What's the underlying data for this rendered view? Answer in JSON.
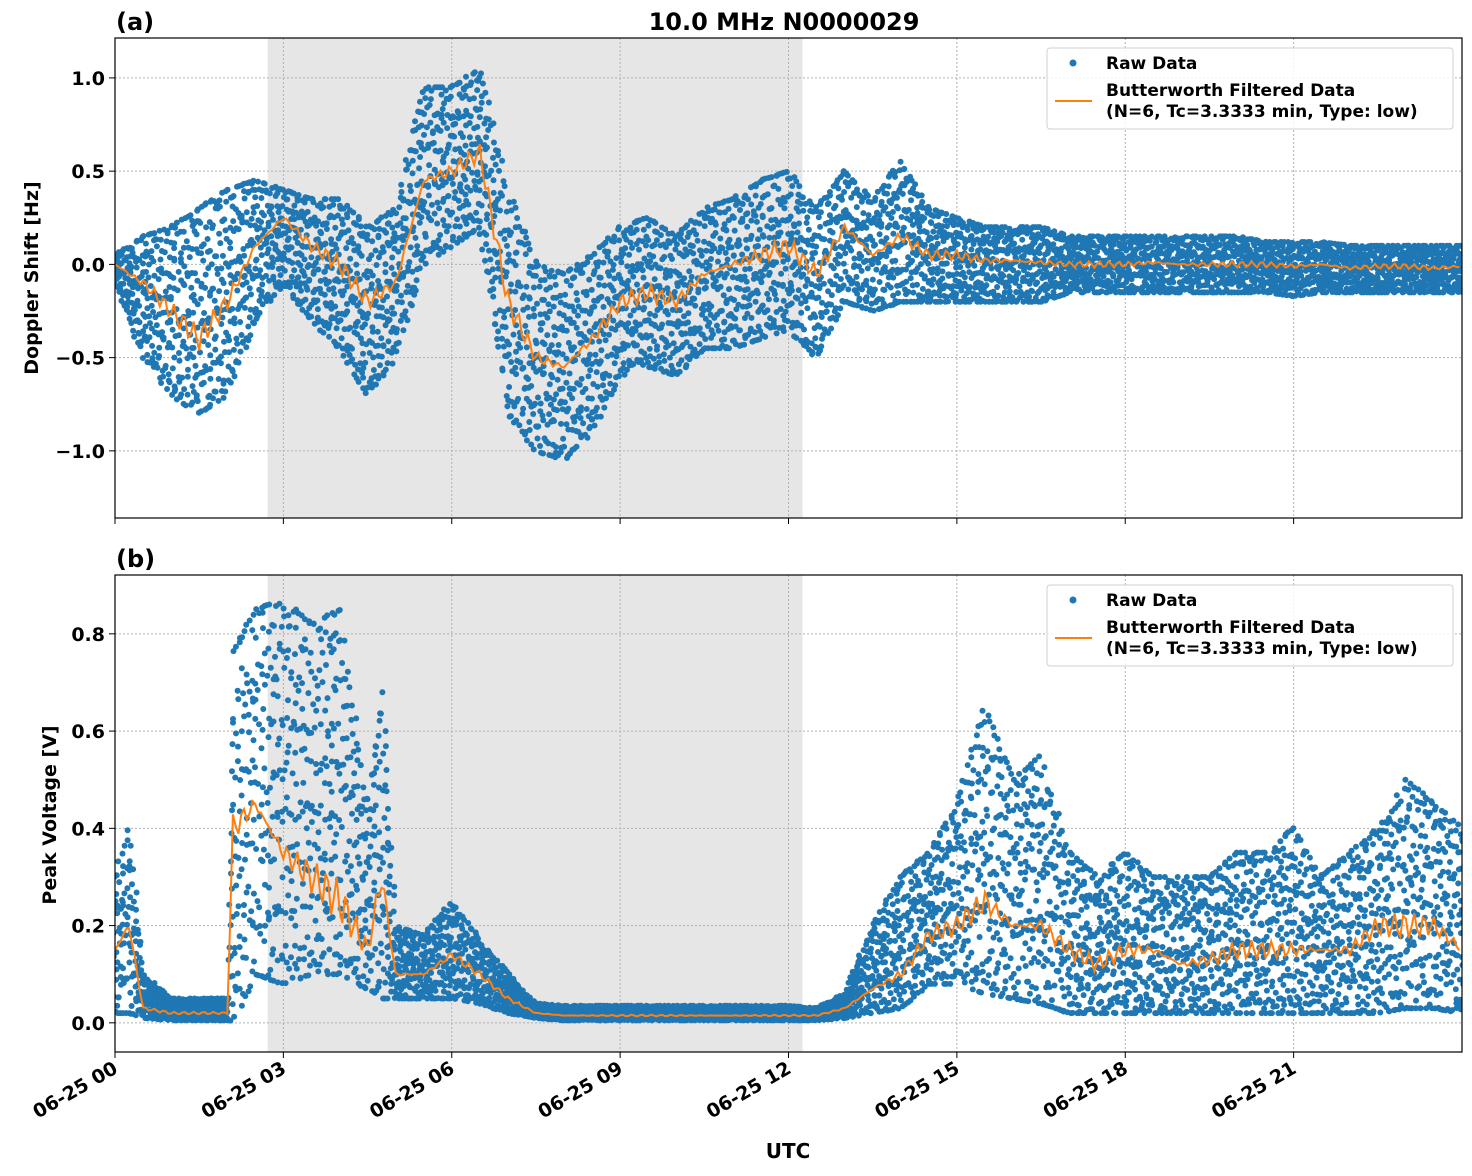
{
  "figure_title": "10.0 MHz N0000029",
  "colors": {
    "raw": "#1f77b4",
    "filtered": "#ff7f0e",
    "shade": "#e6e6e6"
  },
  "chart_data": [
    {
      "type": "scatter",
      "panel_label": "(a)",
      "title": "10.0 MHz N0000029",
      "ylabel": "Doppler Shift [Hz]",
      "xlabel": "",
      "ylim": [
        -1.36,
        1.214
      ],
      "xlim_hours": [
        0,
        24
      ],
      "yticks": [
        1.0,
        0.5,
        0.0,
        -0.5,
        -1.0
      ],
      "ytick_labels": [
        "1.0",
        "0.5",
        "0.0",
        "−0.5",
        "−1.0"
      ],
      "grid": true,
      "legend_position": "top-right",
      "legend": [
        "Raw Data",
        "Butterworth Filtered Data\n(N=6, Tc=3.3333 min, Type: low)"
      ],
      "legend_line1": "Raw Data",
      "legend_line2a": "Butterworth Filtered Data",
      "legend_line2b": "(N=6, Tc=3.3333 min, Type: low)",
      "shaded_interval_hours": [
        2.72,
        12.25
      ],
      "x_hours": [
        0,
        0.5,
        1,
        1.5,
        2,
        2.5,
        3,
        3.5,
        4,
        4.5,
        5,
        5.5,
        6,
        6.5,
        7,
        7.5,
        8,
        8.5,
        9,
        9.5,
        10,
        10.5,
        11,
        11.5,
        12,
        12.5,
        13,
        13.5,
        14,
        14.5,
        15,
        15.5,
        16,
        16.5,
        17,
        17.5,
        18,
        18.5,
        19,
        19.5,
        20,
        20.5,
        21,
        21.5,
        22,
        22.5,
        23,
        23.5,
        24
      ],
      "series": [
        {
          "name": "Butterworth Filtered Data",
          "kind": "line",
          "values": [
            0.0,
            -0.1,
            -0.25,
            -0.4,
            -0.2,
            0.1,
            0.25,
            0.1,
            0.0,
            -0.2,
            -0.1,
            0.45,
            0.5,
            0.6,
            -0.2,
            -0.5,
            -0.55,
            -0.4,
            -0.2,
            -0.15,
            -0.2,
            -0.05,
            0.0,
            0.05,
            0.1,
            -0.05,
            0.2,
            0.05,
            0.15,
            0.05,
            0.05,
            0.02,
            0.02,
            0.01,
            0.0,
            0.0,
            0.0,
            0.01,
            0.0,
            0.0,
            0.0,
            0.0,
            -0.01,
            0.0,
            -0.02,
            -0.01,
            -0.01,
            -0.02,
            -0.01
          ]
        },
        {
          "name": "Raw Data",
          "kind": "scatter-envelope",
          "min": [
            -0.1,
            -0.5,
            -0.7,
            -0.8,
            -0.7,
            -0.3,
            -0.1,
            -0.3,
            -0.45,
            -0.7,
            -0.5,
            0.0,
            0.1,
            0.2,
            -0.8,
            -1.0,
            -1.05,
            -0.9,
            -0.6,
            -0.55,
            -0.6,
            -0.45,
            -0.45,
            -0.4,
            -0.35,
            -0.5,
            -0.2,
            -0.25,
            -0.2,
            -0.2,
            -0.2,
            -0.2,
            -0.2,
            -0.2,
            -0.15,
            -0.15,
            -0.15,
            -0.15,
            -0.15,
            -0.15,
            -0.15,
            -0.15,
            -0.17,
            -0.15,
            -0.15,
            -0.15,
            -0.15,
            -0.15,
            -0.15
          ],
          "max": [
            0.05,
            0.15,
            0.2,
            0.3,
            0.4,
            0.45,
            0.4,
            0.35,
            0.35,
            0.2,
            0.3,
            0.95,
            0.95,
            1.05,
            0.4,
            0.0,
            -0.05,
            0.05,
            0.2,
            0.25,
            0.15,
            0.3,
            0.35,
            0.45,
            0.5,
            0.3,
            0.5,
            0.35,
            0.55,
            0.3,
            0.25,
            0.2,
            0.2,
            0.2,
            0.15,
            0.15,
            0.15,
            0.15,
            0.15,
            0.15,
            0.15,
            0.12,
            0.12,
            0.12,
            0.1,
            0.1,
            0.1,
            0.1,
            0.1
          ]
        }
      ]
    },
    {
      "type": "scatter",
      "panel_label": "(b)",
      "ylabel": "Peak Voltage [V]",
      "xlabel": "UTC",
      "ylim": [
        -0.06,
        0.921
      ],
      "xlim_hours": [
        0,
        24
      ],
      "yticks": [
        0.8,
        0.6,
        0.4,
        0.2,
        0.0
      ],
      "ytick_labels": [
        "0.8",
        "0.6",
        "0.4",
        "0.2",
        "0.0"
      ],
      "xticks_hours": [
        0,
        3,
        6,
        9,
        12,
        15,
        18,
        21
      ],
      "xtick_labels": [
        "06-25 00",
        "06-25 03",
        "06-25 06",
        "06-25 09",
        "06-25 12",
        "06-25 15",
        "06-25 18",
        "06-25 21"
      ],
      "grid": true,
      "legend_position": "top-right",
      "legend_line1": "Raw Data",
      "legend_line2a": "Butterworth Filtered Data",
      "legend_line2b": "(N=6, Tc=3.3333 min, Type: low)",
      "shaded_interval_hours": [
        2.72,
        12.25
      ],
      "x_hours": [
        0,
        0.25,
        0.5,
        1,
        1.5,
        2,
        2.1,
        2.5,
        3,
        3.5,
        4,
        4.5,
        4.75,
        5,
        5.5,
        6,
        6.5,
        7,
        7.5,
        8,
        9,
        10,
        11,
        12,
        12.5,
        13,
        13.5,
        14,
        14.5,
        15,
        15.5,
        16,
        16.5,
        17,
        17.5,
        18,
        18.5,
        19,
        19.5,
        20,
        20.5,
        21,
        21.5,
        22,
        22.5,
        23,
        23.5,
        24
      ],
      "series": [
        {
          "name": "Butterworth Filtered Data",
          "kind": "line",
          "values": [
            0.15,
            0.2,
            0.03,
            0.02,
            0.02,
            0.02,
            0.4,
            0.45,
            0.35,
            0.3,
            0.25,
            0.15,
            0.3,
            0.1,
            0.1,
            0.14,
            0.1,
            0.05,
            0.02,
            0.015,
            0.015,
            0.015,
            0.015,
            0.015,
            0.015,
            0.03,
            0.07,
            0.1,
            0.18,
            0.2,
            0.25,
            0.2,
            0.2,
            0.15,
            0.12,
            0.15,
            0.15,
            0.12,
            0.13,
            0.15,
            0.15,
            0.15,
            0.15,
            0.15,
            0.2,
            0.2,
            0.2,
            0.15
          ]
        },
        {
          "name": "Raw Data",
          "kind": "scatter-envelope",
          "min": [
            0.02,
            0.02,
            0.01,
            0.005,
            0.005,
            0.005,
            0.0,
            0.1,
            0.08,
            0.1,
            0.1,
            0.07,
            0.05,
            0.05,
            0.05,
            0.05,
            0.04,
            0.02,
            0.01,
            0.005,
            0.005,
            0.005,
            0.005,
            0.005,
            0.005,
            0.01,
            0.02,
            0.03,
            0.08,
            0.08,
            0.06,
            0.05,
            0.04,
            0.02,
            0.02,
            0.02,
            0.02,
            0.02,
            0.02,
            0.02,
            0.02,
            0.02,
            0.02,
            0.02,
            0.02,
            0.03,
            0.03,
            0.02
          ],
          "max": [
            0.3,
            0.4,
            0.1,
            0.05,
            0.05,
            0.05,
            0.76,
            0.85,
            0.87,
            0.82,
            0.85,
            0.45,
            0.7,
            0.2,
            0.18,
            0.25,
            0.17,
            0.1,
            0.04,
            0.035,
            0.035,
            0.035,
            0.035,
            0.035,
            0.03,
            0.06,
            0.2,
            0.3,
            0.35,
            0.45,
            0.65,
            0.5,
            0.55,
            0.35,
            0.3,
            0.35,
            0.3,
            0.3,
            0.3,
            0.35,
            0.35,
            0.4,
            0.3,
            0.35,
            0.4,
            0.5,
            0.45,
            0.4
          ]
        }
      ]
    }
  ]
}
